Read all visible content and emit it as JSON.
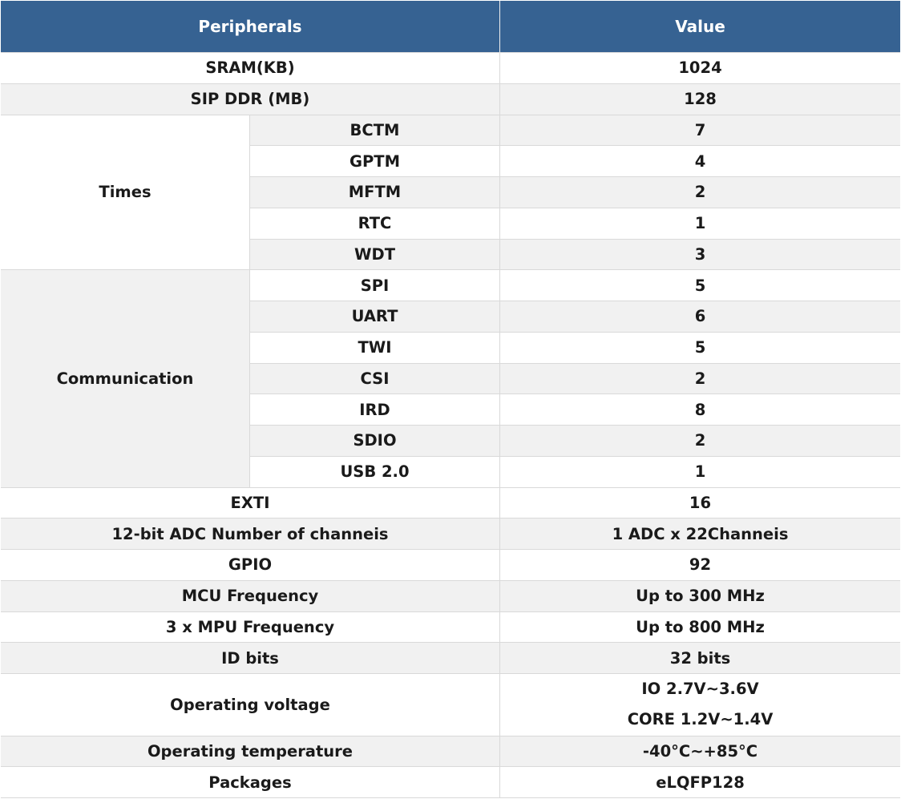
{
  "columns": {
    "peripherals": "Peripherals",
    "value": "Value"
  },
  "rows": [
    {
      "label": "SRAM(KB)",
      "value": "1024"
    },
    {
      "label": "SIP DDR (MB)",
      "value": "128"
    },
    {
      "group": "Times",
      "label": "BCTM",
      "value": "7"
    },
    {
      "label": "GPTM",
      "value": "4"
    },
    {
      "label": "MFTM",
      "value": "2"
    },
    {
      "label": "RTC",
      "value": "1"
    },
    {
      "label": "WDT",
      "value": "3"
    },
    {
      "group": "Communication",
      "label": "SPI",
      "value": "5"
    },
    {
      "label": "UART",
      "value": "6"
    },
    {
      "label": "TWI",
      "value": "5"
    },
    {
      "label": "CSI",
      "value": "2"
    },
    {
      "label": "IRD",
      "value": "8"
    },
    {
      "label": "SDIO",
      "value": "2"
    },
    {
      "label": "USB 2.0",
      "value": "1"
    },
    {
      "label": "EXTI",
      "value": "16"
    },
    {
      "label": "12-bit ADC Number of channeis",
      "value": "1 ADC x 22Channeis"
    },
    {
      "label": "GPIO",
      "value": "92"
    },
    {
      "label": "MCU Frequency",
      "value": "Up to 300 MHz"
    },
    {
      "label": "3 x MPU Frequency",
      "value": "Up to 800 MHz"
    },
    {
      "label": "ID bits",
      "value": "32 bits"
    },
    {
      "label": "Operating voltage",
      "value_lines": [
        "IO 2.7V~3.6V",
        "CORE 1.2V~1.4V"
      ]
    },
    {
      "label": "Operating temperature",
      "value": "-40°C~+85°C"
    },
    {
      "label": "Packages",
      "value": "eLQFP128"
    }
  ],
  "colors": {
    "header_bg": "#366292",
    "header_text": "#ffffff",
    "zebra_bg": "#f1f1f1",
    "row_bg": "#ffffff",
    "border": "#d9d9d9",
    "text": "#1a1a1a"
  }
}
